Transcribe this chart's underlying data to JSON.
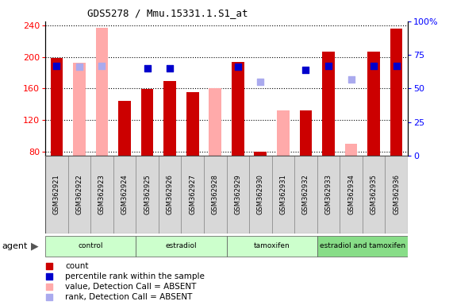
{
  "title": "GDS5278 / Mmu.15331.1.S1_at",
  "samples": [
    "GSM362921",
    "GSM362922",
    "GSM362923",
    "GSM362924",
    "GSM362925",
    "GSM362926",
    "GSM362927",
    "GSM362928",
    "GSM362929",
    "GSM362930",
    "GSM362931",
    "GSM362932",
    "GSM362933",
    "GSM362934",
    "GSM362935",
    "GSM362936"
  ],
  "count_values": [
    199,
    null,
    null,
    144,
    159,
    169,
    155,
    null,
    194,
    80,
    null,
    132,
    207,
    null,
    207,
    236
  ],
  "count_absent": [
    null,
    193,
    237,
    null,
    null,
    null,
    null,
    160,
    null,
    null,
    132,
    null,
    null,
    90,
    null,
    null
  ],
  "rank_present": [
    67,
    null,
    null,
    null,
    65,
    65,
    null,
    null,
    66,
    null,
    null,
    64,
    67,
    null,
    67,
    67
  ],
  "rank_absent": [
    null,
    66,
    67,
    null,
    null,
    null,
    null,
    null,
    null,
    55,
    null,
    null,
    null,
    57,
    null,
    null
  ],
  "groups": [
    {
      "label": "control",
      "start": 0,
      "end": 4,
      "color": "#ccffcc"
    },
    {
      "label": "estradiol",
      "start": 4,
      "end": 8,
      "color": "#ccffcc"
    },
    {
      "label": "tamoxifen",
      "start": 8,
      "end": 12,
      "color": "#ccffcc"
    },
    {
      "label": "estradiol and tamoxifen",
      "start": 12,
      "end": 16,
      "color": "#99ee99"
    }
  ],
  "ylim_left": [
    75,
    245
  ],
  "ylim_right": [
    0,
    100
  ],
  "yticks_left": [
    80,
    120,
    160,
    200,
    240
  ],
  "yticks_right": [
    0,
    25,
    50,
    75,
    100
  ],
  "bar_color_present": "#cc0000",
  "bar_color_absent": "#ffaaaa",
  "rank_color_present": "#0000cc",
  "rank_color_absent": "#aaaaee",
  "bar_width": 0.55,
  "rank_marker_size": 35,
  "legend_items": [
    {
      "color": "#cc0000",
      "label": "count"
    },
    {
      "color": "#0000cc",
      "label": "percentile rank within the sample"
    },
    {
      "color": "#ffaaaa",
      "label": "value, Detection Call = ABSENT"
    },
    {
      "color": "#aaaaee",
      "label": "rank, Detection Call = ABSENT"
    }
  ]
}
